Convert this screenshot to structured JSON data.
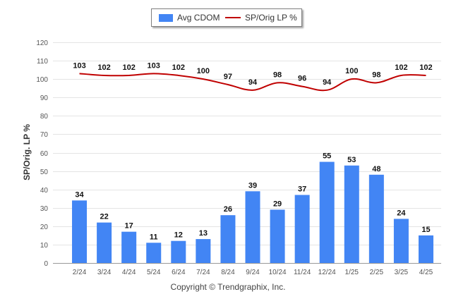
{
  "chart_data": {
    "type": "bar",
    "categories": [
      "2/24",
      "3/24",
      "4/24",
      "5/24",
      "6/24",
      "7/24",
      "8/24",
      "9/24",
      "10/24",
      "11/24",
      "12/24",
      "1/25",
      "2/25",
      "3/25",
      "4/25"
    ],
    "series": [
      {
        "name": "Avg CDOM",
        "type": "bar",
        "color": "#4285f4",
        "values": [
          34,
          22,
          17,
          11,
          12,
          13,
          26,
          39,
          29,
          37,
          55,
          53,
          48,
          24,
          15
        ]
      },
      {
        "name": "SP/Orig LP %",
        "type": "line",
        "color": "#c00000",
        "values": [
          103,
          102,
          102,
          103,
          102,
          100,
          97,
          94,
          98,
          96,
          94,
          100,
          98,
          102,
          102
        ]
      }
    ],
    "ylabel": "SP/Orig. LP %",
    "ylim": [
      0,
      120
    ],
    "yticks": [
      0,
      10,
      20,
      30,
      40,
      50,
      60,
      70,
      80,
      90,
      100,
      110,
      120
    ],
    "grid": true,
    "legend": "top"
  },
  "legend": {
    "bar_label": "Avg CDOM",
    "line_label": "SP/Orig LP %"
  },
  "footer": {
    "copyright": "Copyright © Trendgraphix, Inc."
  }
}
